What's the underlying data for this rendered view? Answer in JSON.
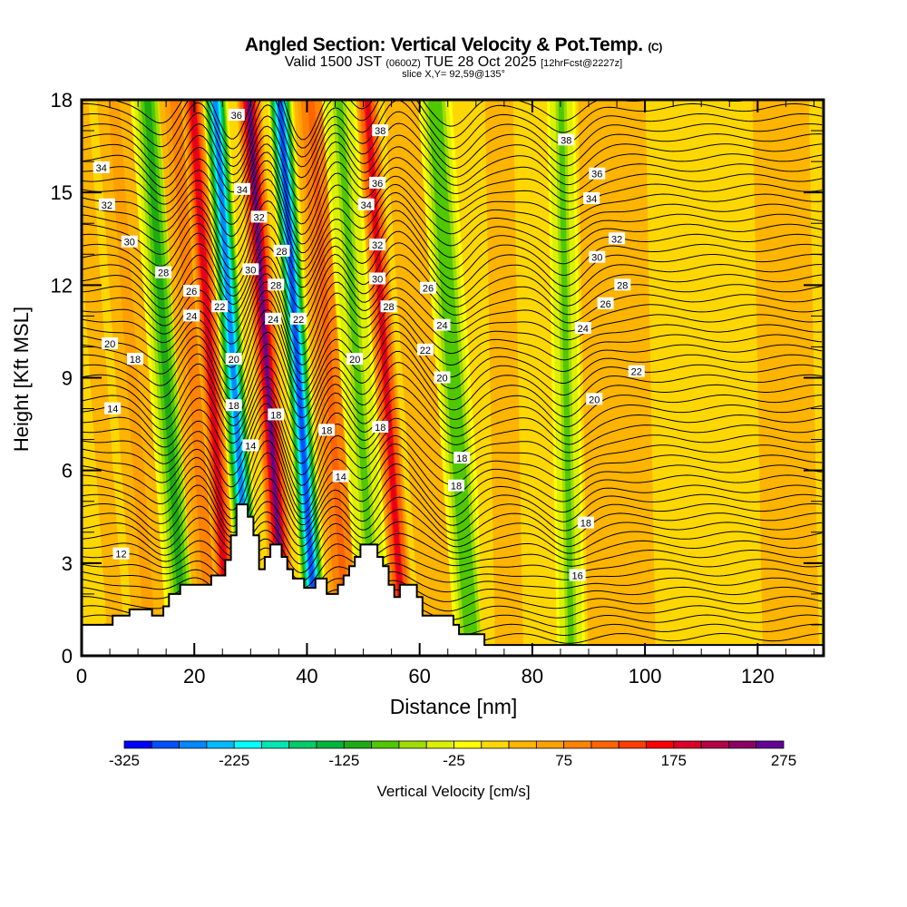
{
  "header": {
    "title_main": "Angled Section: Vertical Velocity & Pot.Temp.",
    "title_units": "(C)",
    "valid_prefix": "Valid 1500 JST",
    "valid_utc": "(0600Z)",
    "valid_date": "TUE 28 Oct 2025",
    "forecast_info": "[12hrFcst@2227z]",
    "slice": "slice X,Y= 92,59@135°"
  },
  "chart_data": {
    "type": "heatmap",
    "title": "Angled Section: Vertical Velocity & Pot.Temp. (C)",
    "xlabel": "Distance [nm]",
    "ylabel": "Height [Kft MSL]",
    "xlim": [
      0,
      131.7
    ],
    "ylim": [
      0,
      18
    ],
    "xticks": [
      0,
      20,
      40,
      60,
      80,
      100,
      120
    ],
    "yticks": [
      0,
      3,
      6,
      9,
      12,
      15,
      18
    ],
    "colorbar": {
      "label": "Vertical Velocity [cm/s]",
      "min": -325,
      "max": 275,
      "step": 25,
      "tick_labels": [
        "-325",
        "-225",
        "-125",
        "-25",
        "75",
        "175",
        "275"
      ],
      "colors": [
        "#0000ff",
        "#0050ff",
        "#0088ff",
        "#00bbff",
        "#00ffff",
        "#00e6b4",
        "#00cc6a",
        "#00b43c",
        "#1eaa14",
        "#50c800",
        "#a0dc00",
        "#dcf000",
        "#ffff00",
        "#ffd700",
        "#ffb400",
        "#ffa000",
        "#ff8200",
        "#ff6400",
        "#ff3c00",
        "#ff0000",
        "#dc0028",
        "#b40046",
        "#8c0064",
        "#640096"
      ]
    },
    "vertical_velocity_bands": [
      {
        "x": 3,
        "w": 3,
        "v": 25
      },
      {
        "x": 9,
        "w": 3,
        "v": 60
      },
      {
        "x": 15,
        "w": 3,
        "v": -110
      },
      {
        "x": 20,
        "w": 3,
        "v": 80
      },
      {
        "x": 23,
        "w": 2,
        "v": 175
      },
      {
        "x": 27,
        "w": 2.2,
        "v": -275
      },
      {
        "x": 33,
        "w": 2.2,
        "v": 260
      },
      {
        "x": 38.5,
        "w": 2.2,
        "v": -300
      },
      {
        "x": 44,
        "w": 3,
        "v": 120
      },
      {
        "x": 49,
        "w": 3,
        "v": -90
      },
      {
        "x": 54,
        "w": 2,
        "v": 190
      },
      {
        "x": 60,
        "w": 3,
        "v": 40
      },
      {
        "x": 66,
        "w": 3,
        "v": -100
      },
      {
        "x": 75,
        "w": 5,
        "v": 25
      },
      {
        "x": 86,
        "w": 2.5,
        "v": -90
      },
      {
        "x": 95,
        "w": 6,
        "v": 40
      },
      {
        "x": 110,
        "w": 6,
        "v": 20
      },
      {
        "x": 125,
        "w": 5,
        "v": 40
      }
    ],
    "theta_contours": {
      "levels": [
        12,
        14,
        16,
        18,
        20,
        22,
        24,
        26,
        28,
        30,
        32,
        34,
        36,
        38
      ],
      "labels": [
        {
          "text": "34",
          "x": 3.5,
          "y": 15.8
        },
        {
          "text": "32",
          "x": 4.5,
          "y": 14.6
        },
        {
          "text": "30",
          "x": 8.5,
          "y": 13.4
        },
        {
          "text": "28",
          "x": 14.5,
          "y": 12.4
        },
        {
          "text": "26",
          "x": 19.5,
          "y": 11.8
        },
        {
          "text": "24",
          "x": 19.5,
          "y": 11.0
        },
        {
          "text": "22",
          "x": 24.5,
          "y": 11.3
        },
        {
          "text": "20",
          "x": 5,
          "y": 10.1
        },
        {
          "text": "18",
          "x": 9.5,
          "y": 9.6
        },
        {
          "text": "14",
          "x": 5.5,
          "y": 8.0
        },
        {
          "text": "12",
          "x": 7,
          "y": 3.3
        },
        {
          "text": "36",
          "x": 27.5,
          "y": 17.5
        },
        {
          "text": "34",
          "x": 28.5,
          "y": 15.1
        },
        {
          "text": "32",
          "x": 31.5,
          "y": 14.2
        },
        {
          "text": "30",
          "x": 30,
          "y": 12.5
        },
        {
          "text": "28",
          "x": 35.5,
          "y": 13.1
        },
        {
          "text": "28",
          "x": 34.5,
          "y": 12.0
        },
        {
          "text": "24",
          "x": 34,
          "y": 10.9
        },
        {
          "text": "22",
          "x": 38.5,
          "y": 10.9
        },
        {
          "text": "20",
          "x": 27,
          "y": 9.6
        },
        {
          "text": "18",
          "x": 27,
          "y": 8.1
        },
        {
          "text": "18",
          "x": 34.5,
          "y": 7.8
        },
        {
          "text": "14",
          "x": 30,
          "y": 6.8
        },
        {
          "text": "38",
          "x": 53,
          "y": 17.0
        },
        {
          "text": "36",
          "x": 52.5,
          "y": 15.3
        },
        {
          "text": "34",
          "x": 50.5,
          "y": 14.6
        },
        {
          "text": "32",
          "x": 52.5,
          "y": 13.3
        },
        {
          "text": "30",
          "x": 52.5,
          "y": 12.2
        },
        {
          "text": "28",
          "x": 54.5,
          "y": 11.3
        },
        {
          "text": "26",
          "x": 61.5,
          "y": 11.9
        },
        {
          "text": "24",
          "x": 64,
          "y": 10.7
        },
        {
          "text": "22",
          "x": 61,
          "y": 9.9
        },
        {
          "text": "20",
          "x": 48.5,
          "y": 9.6
        },
        {
          "text": "20",
          "x": 64,
          "y": 9.0
        },
        {
          "text": "18",
          "x": 43.5,
          "y": 7.3
        },
        {
          "text": "18",
          "x": 53,
          "y": 7.4
        },
        {
          "text": "18",
          "x": 67.5,
          "y": 6.4
        },
        {
          "text": "18",
          "x": 66.5,
          "y": 5.5
        },
        {
          "text": "14",
          "x": 46,
          "y": 5.8
        },
        {
          "text": "38",
          "x": 86,
          "y": 16.7
        },
        {
          "text": "36",
          "x": 91.5,
          "y": 15.6
        },
        {
          "text": "34",
          "x": 90.5,
          "y": 14.8
        },
        {
          "text": "32",
          "x": 95,
          "y": 13.5
        },
        {
          "text": "30",
          "x": 91.5,
          "y": 12.9
        },
        {
          "text": "28",
          "x": 96,
          "y": 12.0
        },
        {
          "text": "26",
          "x": 93,
          "y": 11.4
        },
        {
          "text": "24",
          "x": 89,
          "y": 10.6
        },
        {
          "text": "22",
          "x": 98.5,
          "y": 9.2
        },
        {
          "text": "20",
          "x": 91,
          "y": 8.3
        },
        {
          "text": "18",
          "x": 89.5,
          "y": 4.3
        },
        {
          "text": "16",
          "x": 88,
          "y": 2.6
        }
      ]
    },
    "terrain_profile_kft": [
      [
        0,
        1.0
      ],
      [
        5.5,
        1.0
      ],
      [
        5.5,
        1.3
      ],
      [
        8.5,
        1.3
      ],
      [
        8.5,
        1.5
      ],
      [
        12.5,
        1.5
      ],
      [
        12.5,
        1.3
      ],
      [
        14.5,
        1.3
      ],
      [
        14.5,
        1.6
      ],
      [
        15.5,
        1.6
      ],
      [
        15.5,
        2.0
      ],
      [
        17.5,
        2.0
      ],
      [
        17.5,
        2.3
      ],
      [
        23,
        2.3
      ],
      [
        23,
        2.6
      ],
      [
        25.5,
        2.6
      ],
      [
        25.5,
        3.1
      ],
      [
        26.5,
        3.1
      ],
      [
        26.5,
        3.9
      ],
      [
        27.5,
        3.9
      ],
      [
        27.5,
        4.9
      ],
      [
        29.5,
        4.9
      ],
      [
        29.5,
        4.5
      ],
      [
        30.5,
        4.5
      ],
      [
        30.5,
        3.9
      ],
      [
        31.5,
        3.9
      ],
      [
        31.5,
        2.8
      ],
      [
        32.5,
        2.8
      ],
      [
        32.5,
        3.2
      ],
      [
        33.5,
        3.2
      ],
      [
        33.5,
        3.6
      ],
      [
        35.5,
        3.6
      ],
      [
        35.5,
        3.2
      ],
      [
        36.5,
        3.2
      ],
      [
        36.5,
        2.8
      ],
      [
        37.5,
        2.8
      ],
      [
        37.5,
        2.5
      ],
      [
        39.5,
        2.5
      ],
      [
        39.5,
        2.2
      ],
      [
        41.5,
        2.2
      ],
      [
        41.5,
        2.5
      ],
      [
        43.5,
        2.5
      ],
      [
        43.5,
        2.0
      ],
      [
        45.5,
        2.0
      ],
      [
        45.5,
        2.3
      ],
      [
        46.5,
        2.3
      ],
      [
        46.5,
        2.6
      ],
      [
        47.5,
        2.6
      ],
      [
        47.5,
        2.9
      ],
      [
        48.5,
        2.9
      ],
      [
        48.5,
        3.2
      ],
      [
        49.5,
        3.2
      ],
      [
        49.5,
        3.6
      ],
      [
        52.5,
        3.6
      ],
      [
        52.5,
        3.2
      ],
      [
        53.5,
        3.2
      ],
      [
        53.5,
        2.9
      ],
      [
        54.5,
        2.9
      ],
      [
        54.5,
        2.3
      ],
      [
        55.5,
        2.3
      ],
      [
        55.5,
        1.9
      ],
      [
        56.5,
        1.9
      ],
      [
        56.5,
        2.3
      ],
      [
        59.5,
        2.3
      ],
      [
        59.5,
        1.9
      ],
      [
        60.5,
        1.9
      ],
      [
        60.5,
        1.3
      ],
      [
        66,
        1.3
      ],
      [
        66,
        1.0
      ],
      [
        67,
        1.0
      ],
      [
        67,
        0.7
      ],
      [
        71.5,
        0.7
      ],
      [
        71.5,
        0.35
      ],
      [
        131.7,
        0.35
      ]
    ]
  }
}
